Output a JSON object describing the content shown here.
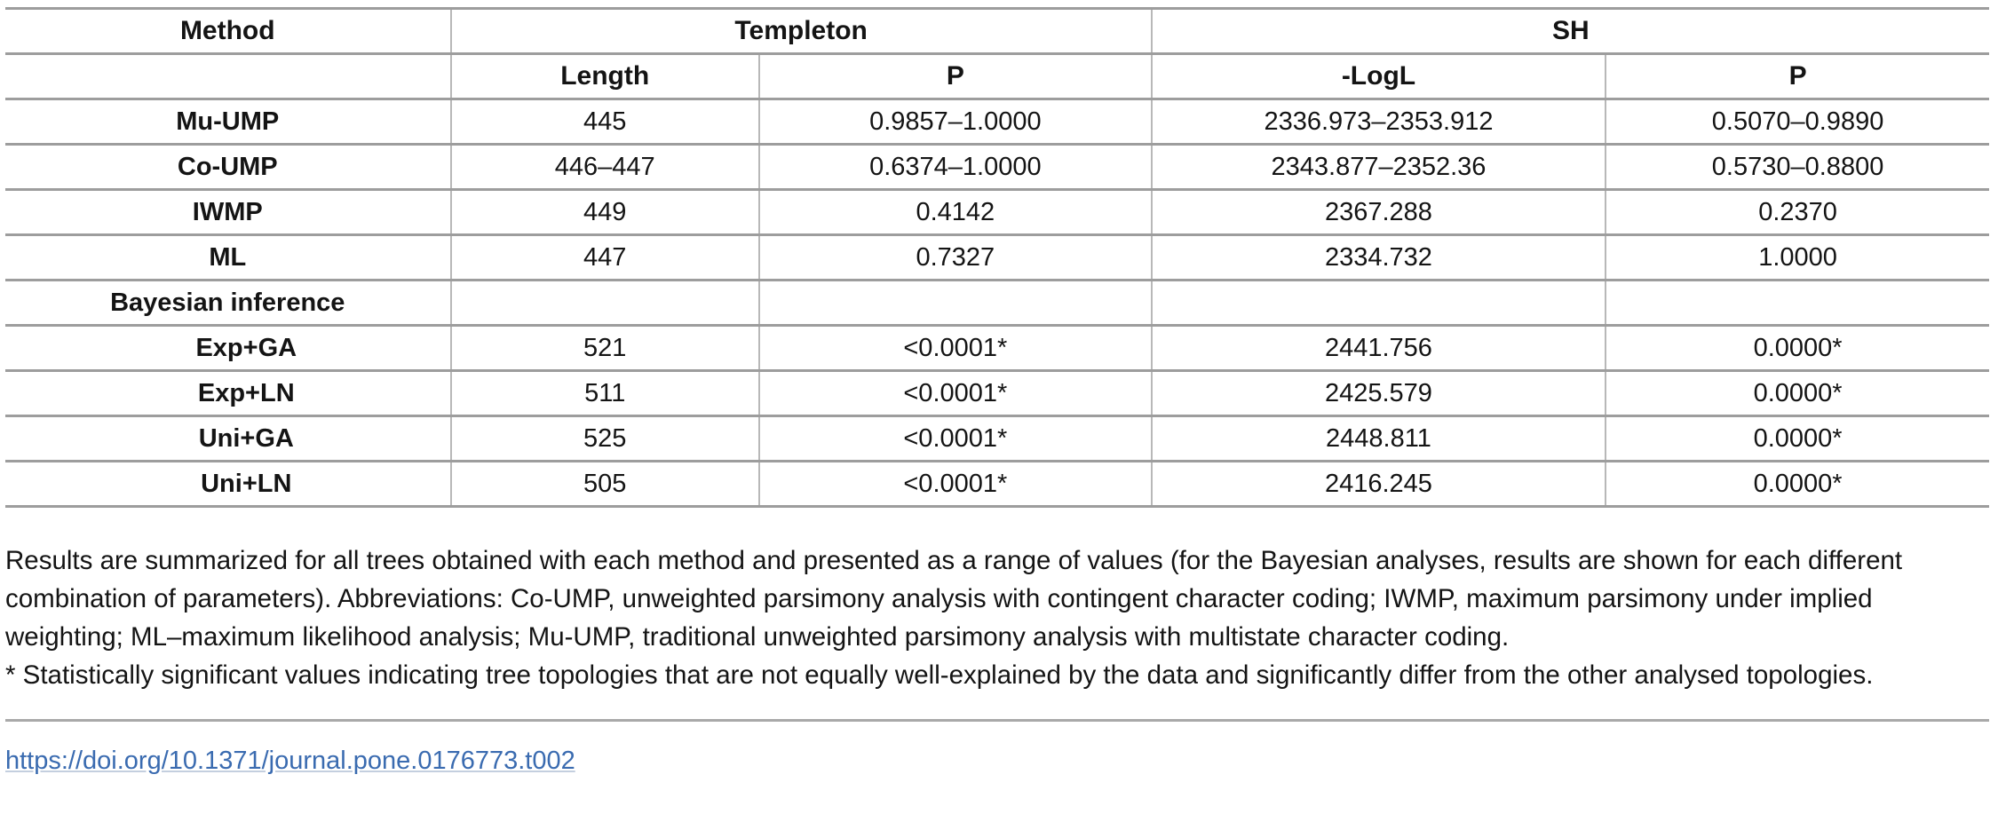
{
  "table": {
    "header_row1": [
      {
        "label": "Method"
      },
      {
        "label": "Templeton"
      },
      {
        "label": "SH"
      }
    ],
    "header_row2": [
      "",
      "Length",
      "P",
      "-LogL",
      "P"
    ],
    "rows": [
      {
        "method": "Mu-UMP",
        "indent": false,
        "length": "445",
        "templeton_p": "0.9857–1.0000",
        "logl": "2336.973–2353.912",
        "sh_p": "0.5070–0.9890"
      },
      {
        "method": "Co-UMP",
        "indent": false,
        "length": "446–447",
        "templeton_p": "0.6374–1.0000",
        "logl": "2343.877–2352.36",
        "sh_p": "0.5730–0.8800"
      },
      {
        "method": "IWMP",
        "indent": false,
        "length": "449",
        "templeton_p": "0.4142",
        "logl": "2367.288",
        "sh_p": "0.2370"
      },
      {
        "method": "ML",
        "indent": false,
        "length": "447",
        "templeton_p": "0.7327",
        "logl": "2334.732",
        "sh_p": "1.0000"
      },
      {
        "method": "Bayesian inference",
        "indent": false,
        "length": "",
        "templeton_p": "",
        "logl": "",
        "sh_p": ""
      },
      {
        "method": "Exp+GA",
        "indent": true,
        "length": "521",
        "templeton_p": "<0.0001*",
        "logl": "2441.756",
        "sh_p": "0.0000*"
      },
      {
        "method": "Exp+LN",
        "indent": true,
        "length": "511",
        "templeton_p": "<0.0001*",
        "logl": "2425.579",
        "sh_p": "0.0000*"
      },
      {
        "method": "Uni+GA",
        "indent": true,
        "length": "525",
        "templeton_p": "<0.0001*",
        "logl": "2448.811",
        "sh_p": "0.0000*"
      },
      {
        "method": "Uni+LN",
        "indent": true,
        "length": "505",
        "templeton_p": "<0.0001*",
        "logl": "2416.245",
        "sh_p": "0.0000*"
      }
    ]
  },
  "footnotes": {
    "summary": "Results are summarized for all trees obtained with each method and presented as a range of values (for the Bayesian analyses, results are shown for each different combination of parameters). Abbreviations: Co-UMP, unweighted parsimony analysis with contingent character coding; IWMP, maximum parsimony under implied weighting; ML–maximum likelihood analysis; Mu-UMP, traditional unweighted parsimony analysis with multistate character coding.",
    "significance": "* Statistically significant values indicating tree topologies that are not equally well-explained by the data and significantly differ from the other analysed topologies."
  },
  "link": {
    "doi": "https://doi.org/10.1371/journal.pone.0176773.t002"
  },
  "colors": {
    "row_border": "#9d9d9d",
    "column_border": "#b8b8b8",
    "link_blue": "#3a6bb0",
    "text": "#141414"
  }
}
